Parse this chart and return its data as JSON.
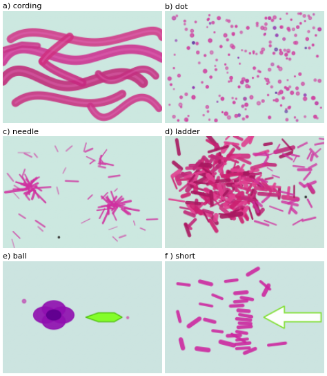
{
  "panels": [
    {
      "label": "a) cording",
      "row": 0,
      "col": 0,
      "bg": "#cce8e0",
      "type": "cording"
    },
    {
      "label": "b) dot",
      "row": 0,
      "col": 1,
      "bg": "#cce8e0",
      "type": "dot"
    },
    {
      "label": "c) needle",
      "row": 1,
      "col": 0,
      "bg": "#cce8e0",
      "type": "needle"
    },
    {
      "label": "d) ladder",
      "row": 1,
      "col": 1,
      "bg": "#cce4dc",
      "type": "ladder"
    },
    {
      "label": "e) ball",
      "row": 2,
      "col": 0,
      "bg": "#cce4e0",
      "type": "ball"
    },
    {
      "label": "f ) short",
      "row": 2,
      "col": 1,
      "bg": "#cce4e0",
      "type": "short"
    }
  ],
  "fig_width": 4.74,
  "fig_height": 5.44,
  "dpi": 100,
  "label_fontsize": 8,
  "label_color": "#000000",
  "bg_color": "#ffffff"
}
